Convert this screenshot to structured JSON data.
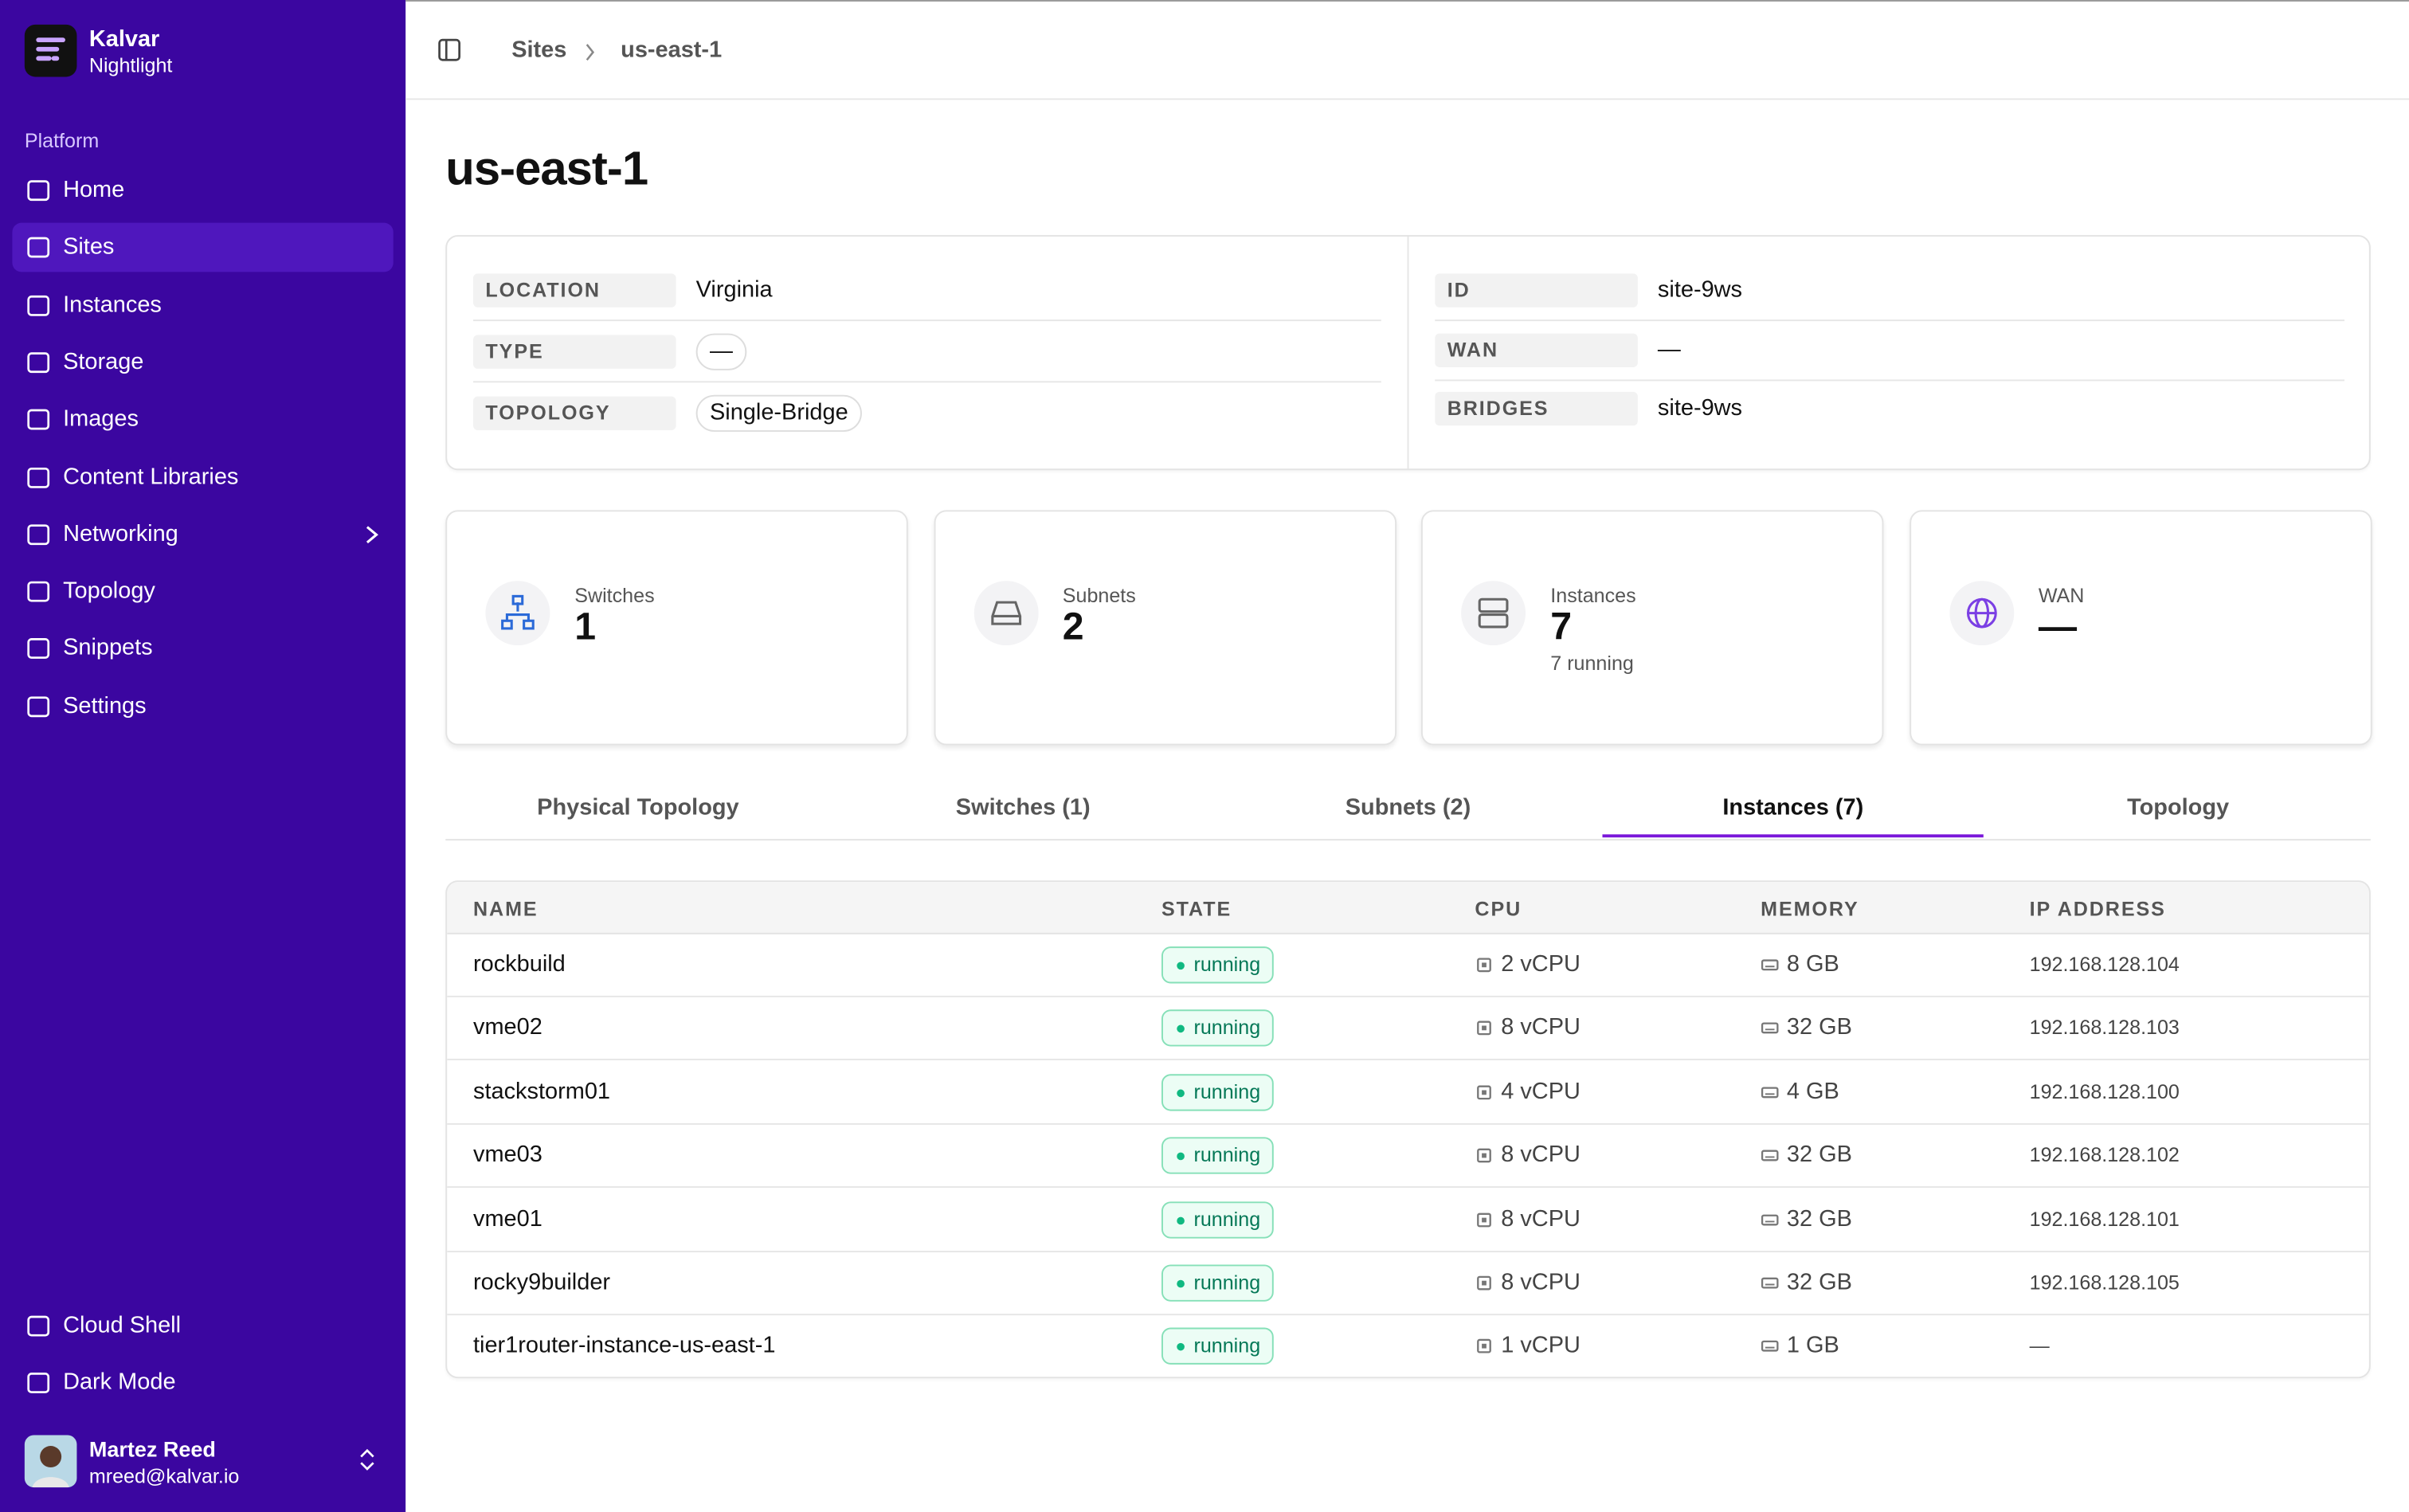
{
  "sidebar": {
    "brand": {
      "name": "Kalvar",
      "subtitle": "Nightlight"
    },
    "section": "Platform",
    "nav": [
      {
        "label": "Home"
      },
      {
        "label": "Sites",
        "active": true
      },
      {
        "label": "Instances"
      },
      {
        "label": "Storage"
      },
      {
        "label": "Images"
      },
      {
        "label": "Content Libraries"
      },
      {
        "label": "Networking"
      },
      {
        "label": "Topology"
      },
      {
        "label": "Snippets"
      },
      {
        "label": "Settings"
      }
    ],
    "footer_nav": [
      "Cloud Shell",
      "Dark Mode"
    ],
    "user": {
      "name": "Martez Reed",
      "email": "mreed@kalvar.io"
    }
  },
  "breadcrumb": [
    "Sites",
    "us-east-1"
  ],
  "page_title": "us-east-1",
  "details": {
    "left": [
      {
        "label": "LOCATION",
        "value": "Virginia"
      },
      {
        "label": "TYPE",
        "value": "—",
        "pill": true
      },
      {
        "label": "TOPOLOGY",
        "value": "Single-Bridge",
        "pill": true
      }
    ],
    "right": [
      {
        "label": "ID",
        "value": "site-9ws"
      },
      {
        "label": "WAN",
        "value": "—"
      },
      {
        "label": "BRIDGES",
        "value": "site-9ws"
      }
    ]
  },
  "stats": [
    {
      "label": "Switches",
      "value": 1
    },
    {
      "label": "Subnets",
      "value": 2
    },
    {
      "label": "Instances",
      "value": 7,
      "note": "7 running"
    },
    {
      "label": "WAN",
      "value": "—"
    }
  ],
  "tabs": [
    {
      "label": "Physical Topology"
    },
    {
      "label": "Switches (1)"
    },
    {
      "label": "Subnets (2)"
    },
    {
      "label": "Instances (7)",
      "active": true
    },
    {
      "label": "Topology"
    }
  ],
  "table": {
    "columns": [
      "NAME",
      "STATE",
      "CPU",
      "MEMORY",
      "IP ADDRESS"
    ],
    "rows": [
      [
        "rockbuild",
        "running",
        "2 vCPU",
        "8 GB",
        "192.168.128.104"
      ],
      [
        "vme02",
        "running",
        "8 vCPU",
        "32 GB",
        "192.168.128.103"
      ],
      [
        "stackstorm01",
        "running",
        "4 vCPU",
        "4 GB",
        "192.168.128.100"
      ],
      [
        "vme03",
        "running",
        "8 vCPU",
        "32 GB",
        "192.168.128.102"
      ],
      [
        "vme01",
        "running",
        "8 vCPU",
        "32 GB",
        "192.168.128.101"
      ],
      [
        "rocky9builder",
        "running",
        "8 vCPU",
        "32 GB",
        "192.168.128.105"
      ],
      [
        "tier1router-instance-us-east-1",
        "running",
        "1 vCPU",
        "1 GB",
        "—"
      ]
    ]
  }
}
